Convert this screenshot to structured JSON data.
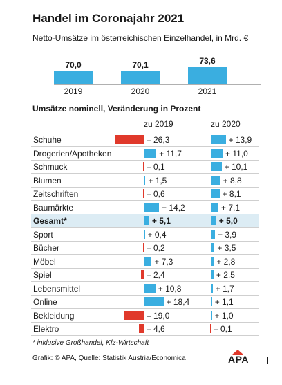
{
  "title": "Handel im Coronajahr 2021",
  "subtitle": "Netto-Umsätze im österreichischen Einzelhandel, in Mrd. €",
  "section_title": "Umsätze nominell, Veränderung in Prozent",
  "col_2019": "zu 2019",
  "col_2020": "zu 2020",
  "footnote": "* inklusive Großhandel, Kfz-Wirtschaft",
  "source": "Grafik: © APA, Quelle: Statistik Austria/Economica",
  "logo_text": "APA",
  "colors": {
    "bar": "#3aaee0",
    "negative": "#e0392b",
    "highlight": "#dcecf4"
  },
  "chart_data": [
    {
      "type": "bar",
      "categories": [
        "2019",
        "2020",
        "2021"
      ],
      "values": [
        70.0,
        70.1,
        73.6
      ],
      "value_labels": [
        "70,0",
        "70,1",
        "73,6"
      ],
      "title": "Netto-Umsätze im österreichischen Einzelhandel, in Mrd. €"
    },
    {
      "type": "table",
      "title": "Umsätze nominell, Veränderung in Prozent",
      "categories": [
        "Schuhe",
        "Drogerien/Apotheken",
        "Schmuck",
        "Blumen",
        "Zeitschriften",
        "Baumärkte",
        "Gesamt*",
        "Sport",
        "Bücher",
        "Möbel",
        "Spiel",
        "Lebensmittel",
        "Online",
        "Bekleidung",
        "Elektro"
      ],
      "series": [
        {
          "name": "zu 2019",
          "values": [
            -26.3,
            11.7,
            -0.1,
            1.5,
            -0.6,
            14.2,
            5.1,
            0.4,
            -0.2,
            7.3,
            -2.4,
            10.8,
            18.4,
            -19.0,
            -4.6
          ],
          "labels": [
            "– 26,3",
            "+ 11,7",
            "– 0,1",
            "+ 1,5",
            "– 0,6",
            "+ 14,2",
            "+ 5,1",
            "+ 0,4",
            "– 0,2",
            "+ 7,3",
            "– 2,4",
            "+ 10,8",
            "+ 18,4",
            "– 19,0",
            "– 4,6"
          ]
        },
        {
          "name": "zu 2020",
          "values": [
            13.9,
            11.0,
            10.1,
            8.8,
            8.1,
            7.1,
            5.0,
            3.9,
            3.5,
            2.8,
            2.5,
            1.7,
            1.1,
            1.0,
            -0.1
          ],
          "labels": [
            "+ 13,9",
            "+ 11,0",
            "+ 10,1",
            "+ 8,8",
            "+ 8,1",
            "+ 7,1",
            "+ 5,0",
            "+ 3,9",
            "+ 3,5",
            "+ 2,8",
            "+ 2,5",
            "+ 1,7",
            "+ 1,1",
            "+ 1,0",
            "– 0,1"
          ]
        }
      ],
      "highlight_row": "Gesamt*"
    }
  ]
}
